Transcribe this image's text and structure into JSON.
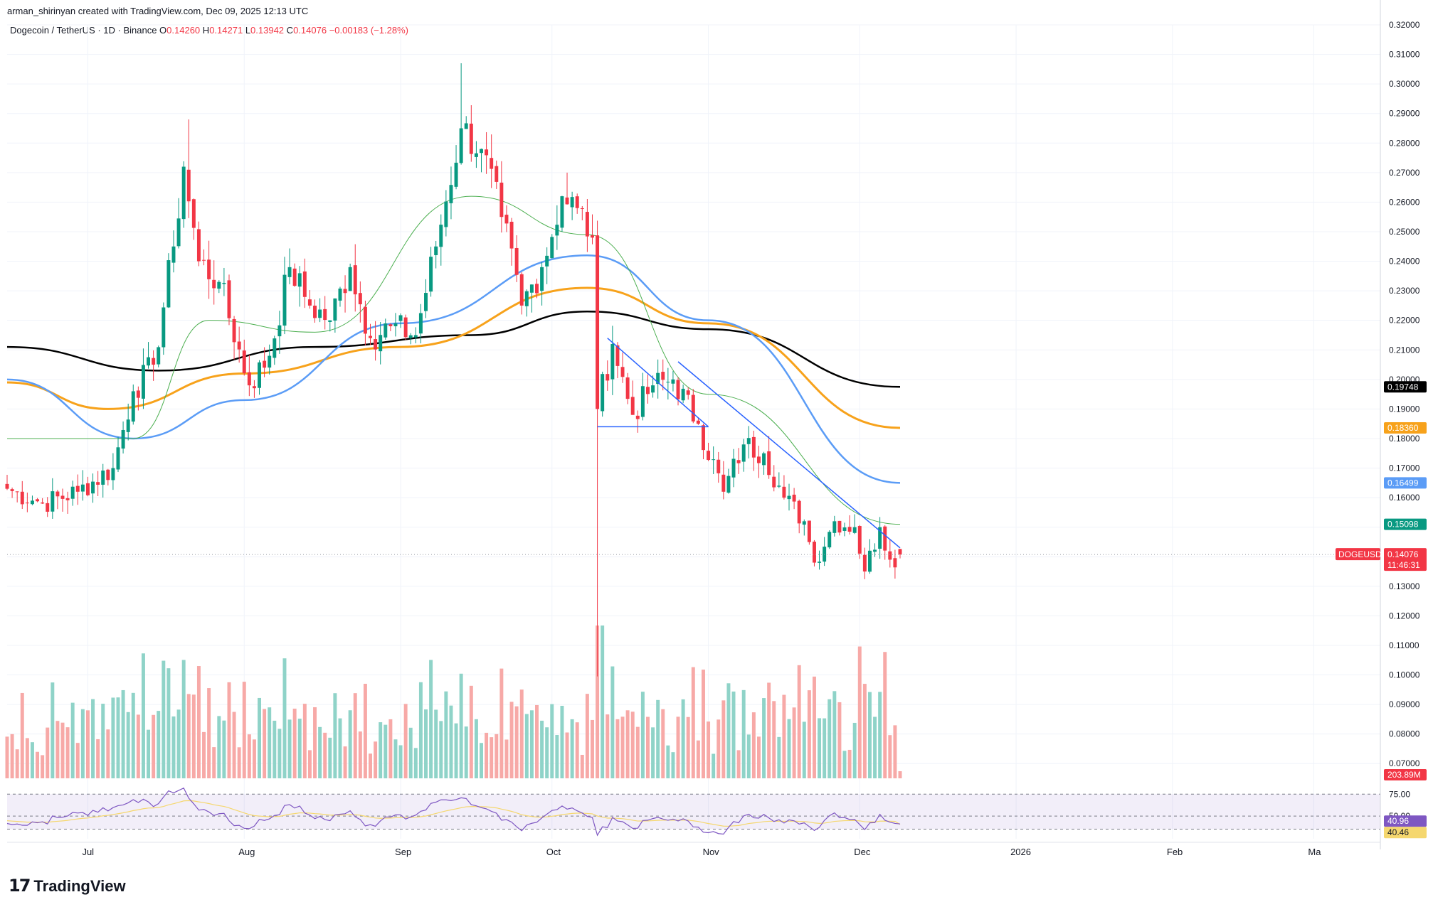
{
  "header": {
    "attribution": "arman_shirinyan created with TradingView.com, Dec 09, 2025 12:13 UTC"
  },
  "symbol": {
    "name": "Dogecoin / TetherUS · 1D · Binance",
    "open_label": "O",
    "open": "0.14260",
    "high_label": "H",
    "high": "0.14271",
    "low_label": "L",
    "low": "0.13942",
    "close_label": "C",
    "close": "0.14076",
    "change": "−0.00183 (−1.28%)"
  },
  "brand": {
    "logo_text": "TradingView"
  },
  "colors": {
    "up": "#089981",
    "down": "#f23645",
    "vol_up": "#8fd3c8",
    "vol_down": "#f7a9a7",
    "ma200": "#000000",
    "ma100": "#f7a21b",
    "ma50": "#5b9cf6",
    "ma20": "#4caf50",
    "trend": "#2962ff",
    "rsi": "#7e57c2",
    "rsi_ma": "#f5d76e"
  },
  "price_tags": [
    {
      "id": "ma200",
      "label": "0.19748",
      "value": 0.19748,
      "color": "#000000"
    },
    {
      "id": "ma100",
      "label": "0.18360",
      "value": 0.1836,
      "color": "#f7a21b"
    },
    {
      "id": "ma50",
      "label": "0.16499",
      "value": 0.16499,
      "color": "#5b9cf6"
    },
    {
      "id": "ma20",
      "label": "0.15098",
      "value": 0.15098,
      "color": "#089981"
    }
  ],
  "current": {
    "symbol_tag": "DOGEUSDT",
    "price": "0.14076",
    "value": 0.14076,
    "countdown": "11:46:31",
    "volume": "203.89M"
  },
  "rsi": {
    "levels": [
      "75.00",
      "50.00"
    ],
    "value": "40.96",
    "ma_value": "40.46"
  },
  "chart_data": {
    "type": "candlestick",
    "ylim": [
      0.065,
      0.32
    ],
    "y_ticks": [
      "0.32000",
      "0.31000",
      "0.30000",
      "0.29000",
      "0.28000",
      "0.27000",
      "0.26000",
      "0.25000",
      "0.24000",
      "0.23000",
      "0.22000",
      "0.21000",
      "0.20000",
      "0.19000",
      "0.18000",
      "0.17000",
      "0.16000",
      "0.15000",
      "0.14000",
      "0.13000",
      "0.12000",
      "0.11000",
      "0.10000",
      "0.09000",
      "0.08000",
      "0.07000"
    ],
    "x_ticks": [
      "Jul",
      "Aug",
      "Sep",
      "Oct",
      "Nov",
      "Dec",
      "2026",
      "Feb",
      "Ma"
    ],
    "price_anchors": [
      {
        "date": "2025-06-15",
        "close": 0.163
      },
      {
        "date": "2025-06-22",
        "close": 0.158
      },
      {
        "date": "2025-06-29",
        "close": 0.162
      },
      {
        "date": "2025-07-06",
        "close": 0.17
      },
      {
        "date": "2025-07-10",
        "close": 0.196
      },
      {
        "date": "2025-07-14",
        "close": 0.205
      },
      {
        "date": "2025-07-18",
        "close": 0.245
      },
      {
        "date": "2025-07-20",
        "close": 0.272
      },
      {
        "date": "2025-07-23",
        "close": 0.24
      },
      {
        "date": "2025-07-27",
        "close": 0.233
      },
      {
        "date": "2025-08-02",
        "close": 0.198
      },
      {
        "date": "2025-08-06",
        "close": 0.208
      },
      {
        "date": "2025-08-10",
        "close": 0.238
      },
      {
        "date": "2025-08-14",
        "close": 0.225
      },
      {
        "date": "2025-08-18",
        "close": 0.22
      },
      {
        "date": "2025-08-22",
        "close": 0.238
      },
      {
        "date": "2025-08-26",
        "close": 0.214
      },
      {
        "date": "2025-08-30",
        "close": 0.218
      },
      {
        "date": "2025-09-04",
        "close": 0.215
      },
      {
        "date": "2025-09-08",
        "close": 0.245
      },
      {
        "date": "2025-09-13",
        "close": 0.285
      },
      {
        "date": "2025-09-17",
        "close": 0.278
      },
      {
        "date": "2025-09-21",
        "close": 0.255
      },
      {
        "date": "2025-09-25",
        "close": 0.225
      },
      {
        "date": "2025-09-29",
        "close": 0.238
      },
      {
        "date": "2025-10-03",
        "close": 0.262
      },
      {
        "date": "2025-10-06",
        "close": 0.258
      },
      {
        "date": "2025-10-09",
        "close": 0.248
      },
      {
        "date": "2025-10-10",
        "close": 0.19
      },
      {
        "date": "2025-10-13",
        "close": 0.212
      },
      {
        "date": "2025-10-17",
        "close": 0.188
      },
      {
        "date": "2025-10-21",
        "close": 0.198
      },
      {
        "date": "2025-10-25",
        "close": 0.2
      },
      {
        "date": "2025-10-30",
        "close": 0.185
      },
      {
        "date": "2025-11-04",
        "close": 0.162
      },
      {
        "date": "2025-11-08",
        "close": 0.178
      },
      {
        "date": "2025-11-12",
        "close": 0.175
      },
      {
        "date": "2025-11-16",
        "close": 0.16
      },
      {
        "date": "2025-11-20",
        "close": 0.152
      },
      {
        "date": "2025-11-22",
        "close": 0.138
      },
      {
        "date": "2025-11-26",
        "close": 0.152
      },
      {
        "date": "2025-11-30",
        "close": 0.15
      },
      {
        "date": "2025-12-02",
        "close": 0.135
      },
      {
        "date": "2025-12-05",
        "close": 0.15
      },
      {
        "date": "2025-12-07",
        "close": 0.139
      },
      {
        "date": "2025-12-09",
        "close": 0.14076
      }
    ],
    "moving_averages": [
      {
        "id": "ma200",
        "points": [
          [
            "2025-06-15",
            0.211
          ],
          [
            "2025-07-15",
            0.203
          ],
          [
            "2025-08-15",
            0.211
          ],
          [
            "2025-09-15",
            0.215
          ],
          [
            "2025-10-08",
            0.223
          ],
          [
            "2025-11-01",
            0.217
          ],
          [
            "2025-12-09",
            0.19748
          ]
        ]
      },
      {
        "id": "ma100",
        "points": [
          [
            "2025-06-15",
            0.199
          ],
          [
            "2025-07-05",
            0.19
          ],
          [
            "2025-08-01",
            0.202
          ],
          [
            "2025-09-01",
            0.211
          ],
          [
            "2025-10-08",
            0.231
          ],
          [
            "2025-11-01",
            0.219
          ],
          [
            "2025-12-09",
            0.1836
          ]
        ]
      },
      {
        "id": "ma50",
        "points": [
          [
            "2025-06-15",
            0.2
          ],
          [
            "2025-07-10",
            0.18
          ],
          [
            "2025-08-01",
            0.193
          ],
          [
            "2025-09-01",
            0.219
          ],
          [
            "2025-10-08",
            0.242
          ],
          [
            "2025-11-01",
            0.22
          ],
          [
            "2025-12-09",
            0.16499
          ]
        ]
      },
      {
        "id": "ma20",
        "points": [
          [
            "2025-06-15",
            0.18
          ],
          [
            "2025-07-10",
            0.18
          ],
          [
            "2025-07-25",
            0.22
          ],
          [
            "2025-08-15",
            0.216
          ],
          [
            "2025-09-15",
            0.262
          ],
          [
            "2025-10-08",
            0.249
          ],
          [
            "2025-11-01",
            0.195
          ],
          [
            "2025-12-09",
            0.15098
          ]
        ]
      }
    ],
    "trendlines": [
      {
        "from": [
          "2025-10-12",
          0.214
        ],
        "to": [
          "2025-11-01",
          0.184
        ]
      },
      {
        "from": [
          "2025-10-26",
          0.206
        ],
        "to": [
          "2025-12-09",
          0.143
        ]
      },
      {
        "from": [
          "2025-10-10",
          0.184
        ],
        "to": [
          "2025-11-01",
          0.184
        ]
      }
    ],
    "current_price": 0.14076
  }
}
